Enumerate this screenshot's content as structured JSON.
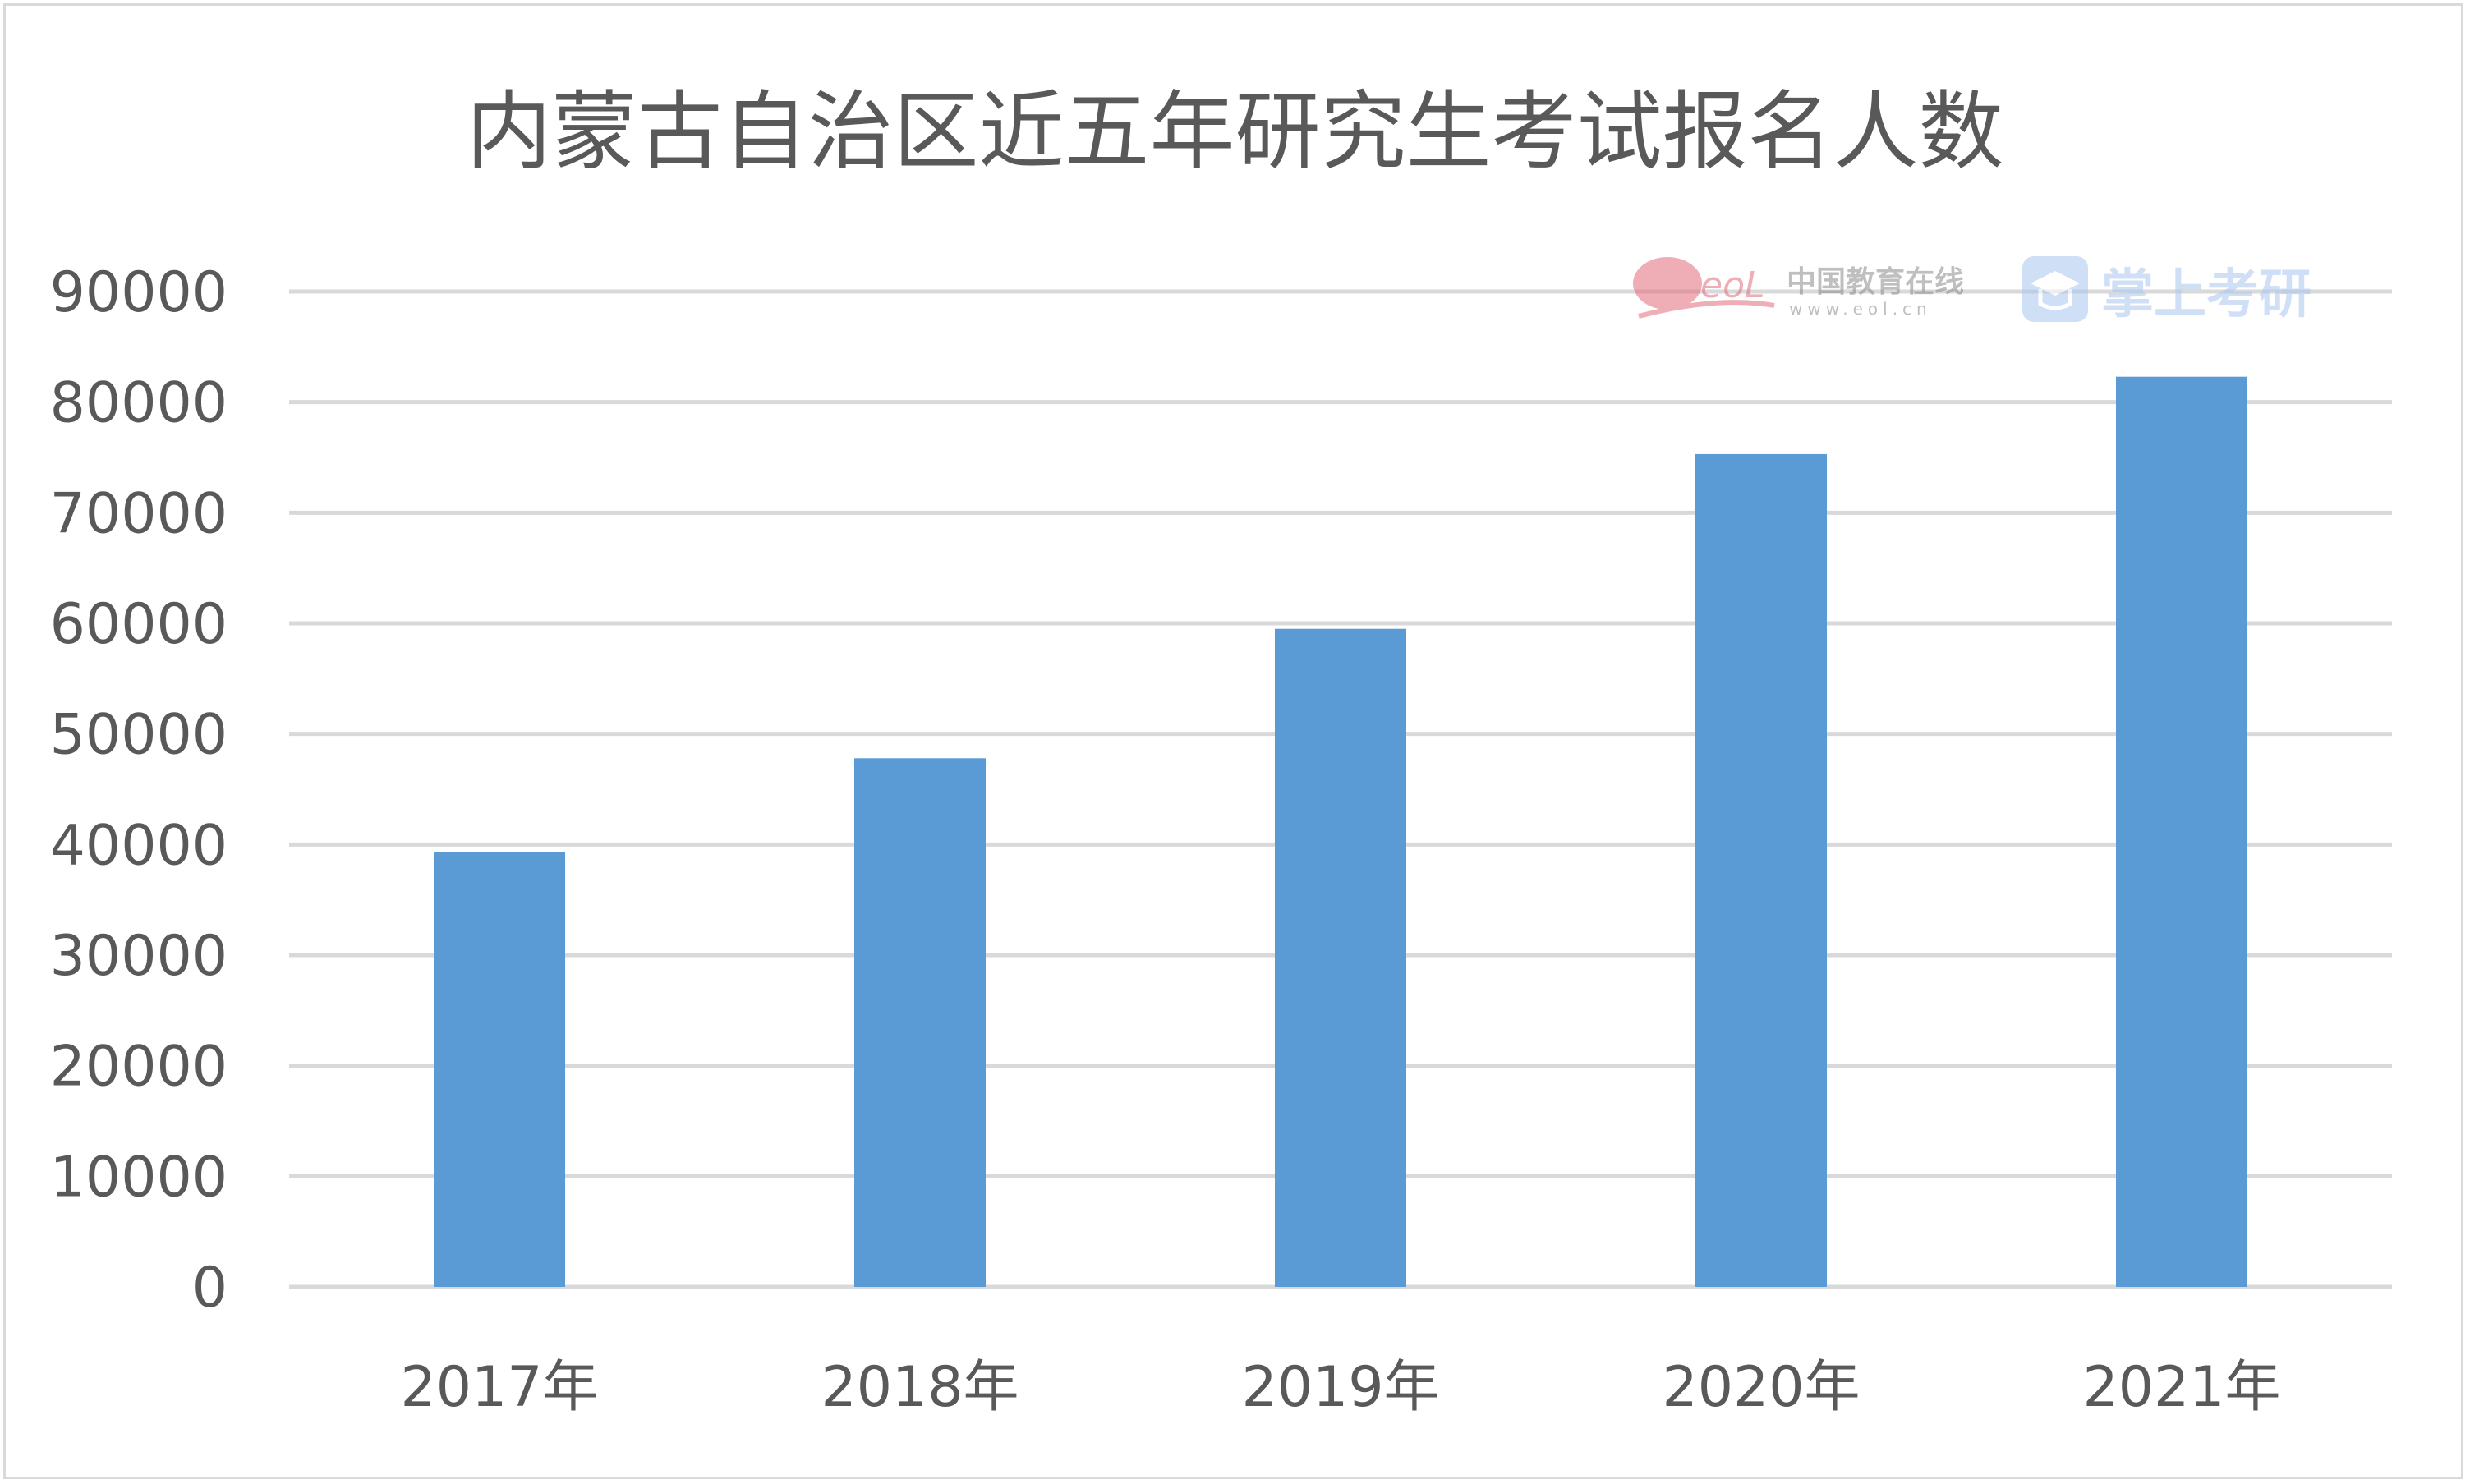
{
  "chart_data": {
    "type": "bar",
    "title": "内蒙古自治区近五年研究生考试报名人数",
    "categories": [
      "2017年",
      "2018年",
      "2019年",
      "2020年",
      "2021年"
    ],
    "values": [
      39300,
      47800,
      59500,
      75300,
      82300
    ],
    "ylim": [
      0,
      90000
    ],
    "yticks": [
      0,
      10000,
      20000,
      30000,
      40000,
      50000,
      60000,
      70000,
      80000,
      90000
    ],
    "xlabel": "",
    "ylabel": "",
    "grid": true,
    "bar_color": "#5b9bd5",
    "grid_color": "#d9d9d9",
    "text_color": "#595959"
  },
  "watermark": {
    "eol_logo": "eoL",
    "eol_name": "中国教育在线",
    "eol_url": "www.eol.cn",
    "brand_icon": "graduation-cap-icon",
    "brand_name": "掌上考研"
  }
}
